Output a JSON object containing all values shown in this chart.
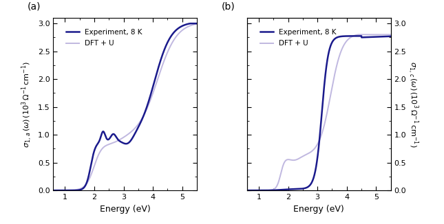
{
  "exp_color": "#1a1a8c",
  "dft_color": "#c0b8e0",
  "exp_linewidth": 1.8,
  "dft_linewidth": 1.4,
  "xlim": [
    0.6,
    5.5
  ],
  "ylim": [
    0,
    3.1
  ],
  "xlabel": "Energy (eV)",
  "legend_exp": "Experiment, 8 K",
  "legend_dft": "DFT + U",
  "panel_a_label": "(a)",
  "panel_b_label": "(b)",
  "background_color": "#ffffff",
  "yticks": [
    0,
    0.5,
    1.0,
    1.5,
    2.0,
    2.5,
    3.0
  ],
  "xticks": [
    1,
    2,
    3,
    4,
    5
  ]
}
